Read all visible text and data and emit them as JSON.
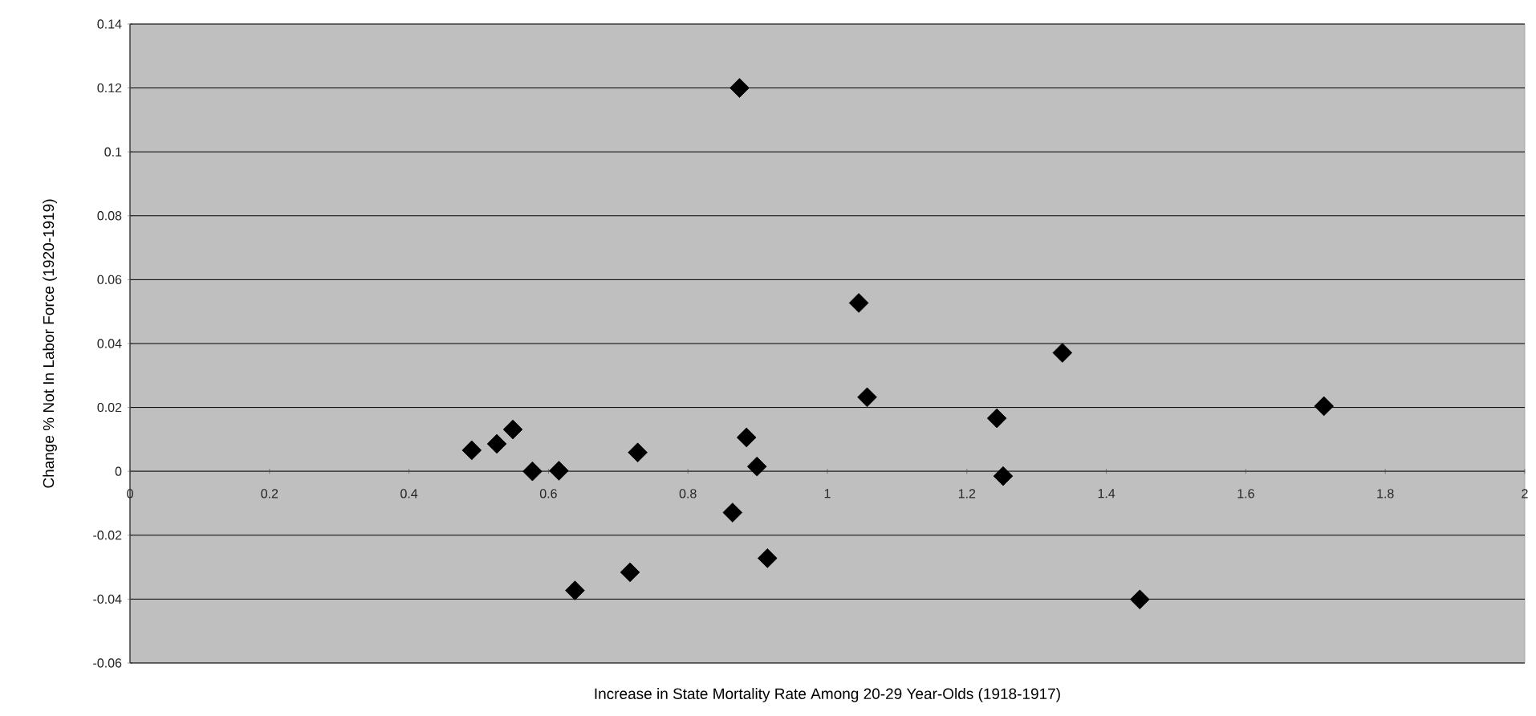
{
  "chart_data": {
    "type": "scatter",
    "xlabel": "Increase in State Mortality Rate Among 20-29 Year-Olds (1918-1917)",
    "ylabel": "Change % Not In Labor Force (1920-1919)",
    "xlim": [
      0,
      2
    ],
    "xticks": [
      0,
      0.2,
      0.4,
      0.6,
      0.8,
      1,
      1.2,
      1.4,
      1.6,
      1.8,
      2
    ],
    "ylim": [
      -0.06,
      0.14
    ],
    "yticks": [
      -0.06,
      -0.04,
      -0.02,
      0,
      0.02,
      0.04,
      0.06,
      0.08,
      0.1,
      0.12,
      0.14
    ],
    "grid": "y",
    "marker": "diamond",
    "series": [
      {
        "color": "#000000",
        "x": [
          0.49,
          0.526,
          0.549,
          0.577,
          0.615,
          0.638,
          0.717,
          0.728,
          0.874,
          0.864,
          0.884,
          0.899,
          0.914,
          1.045,
          1.057,
          1.243,
          1.252,
          1.337,
          1.448,
          1.712
        ],
        "values": [
          0.0066,
          0.0086,
          0.0131,
          0,
          0.0002,
          -0.0373,
          -0.0316,
          0.0059,
          0.12,
          -0.0129,
          0.0106,
          0.0015,
          -0.0272,
          0.0527,
          0.0232,
          0.0166,
          -0.0015,
          0.0371,
          -0.0401,
          0.0204
        ]
      }
    ]
  }
}
